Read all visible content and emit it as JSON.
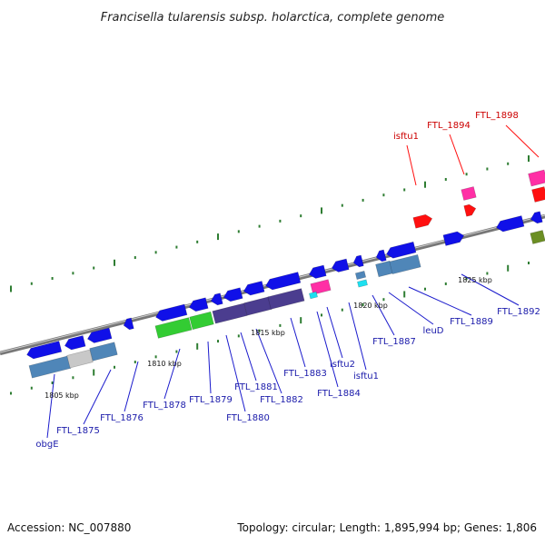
{
  "title": "Francisella tularensis subsp. holarctica, complete genome",
  "footer": {
    "accession": "Accession: NC_007880",
    "summary": "Topology: circular; Length: 1,895,994 bp; Genes: 1,806"
  },
  "colors": {
    "backbone": "#777777",
    "tick": "#2e7d32",
    "cds_blue": "#1010e8",
    "steel": "#4f86b8",
    "green": "#33cc33",
    "indigo": "#4b3d8f",
    "pink": "#ff2fa5",
    "red": "#ff1010",
    "cyan": "#1de0f0",
    "olive": "#6b8e23",
    "grey": "#c8c8c8",
    "label_blue": "#1a1aaa",
    "label_red": "#cc0000"
  },
  "tick_labels": [
    "1805 kbp",
    "1810 kbp",
    "1815 kbp",
    "1820 kbp",
    "1825 kbp"
  ],
  "gene_labels": [
    {
      "text": "obgE",
      "color": "blue"
    },
    {
      "text": "FTL_1875",
      "color": "blue"
    },
    {
      "text": "FTL_1876",
      "color": "blue"
    },
    {
      "text": "FTL_1878",
      "color": "blue"
    },
    {
      "text": "FTL_1879",
      "color": "blue"
    },
    {
      "text": "FTL_1880",
      "color": "blue"
    },
    {
      "text": "FTL_1881",
      "color": "blue"
    },
    {
      "text": "FTL_1882",
      "color": "blue"
    },
    {
      "text": "FTL_1883",
      "color": "blue"
    },
    {
      "text": "FTL_1884",
      "color": "blue"
    },
    {
      "text": "isftu2",
      "color": "blue"
    },
    {
      "text": "isftu1",
      "color": "blue"
    },
    {
      "text": "FTL_1887",
      "color": "blue"
    },
    {
      "text": "leuD",
      "color": "blue"
    },
    {
      "text": "FTL_1889",
      "color": "blue"
    },
    {
      "text": "FTL_1892",
      "color": "blue"
    },
    {
      "text": "isftu1",
      "color": "red"
    },
    {
      "text": "FTL_1894",
      "color": "red"
    },
    {
      "text": "FTL_1898",
      "color": "red"
    }
  ]
}
